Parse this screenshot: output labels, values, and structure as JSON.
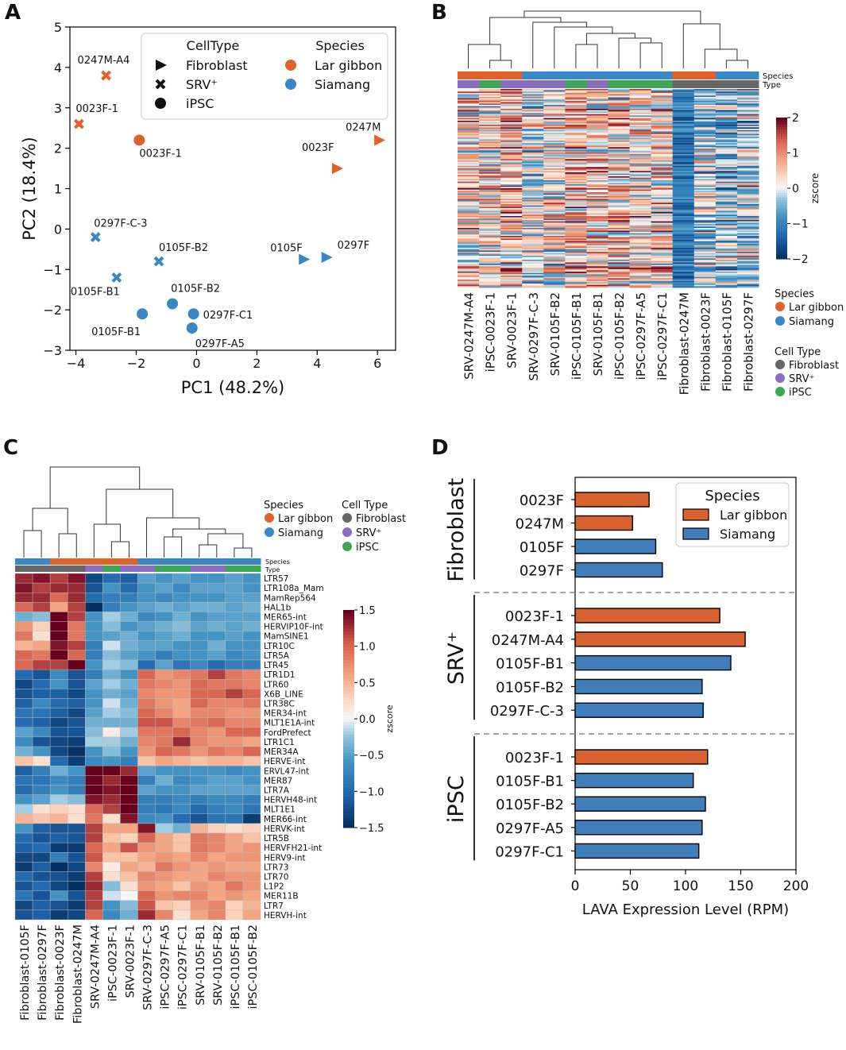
{
  "panel_labels": {
    "a": "A",
    "b": "B",
    "c": "C",
    "d": "D"
  },
  "colors": {
    "lar_gibbon": "#e0612a",
    "siamang": "#3a87c6",
    "fibroblast": "#666666",
    "srv": "#8a6cc0",
    "ipsc": "#3ca655",
    "bar_orange": "#d8622f",
    "bar_blue": "#3f7eb9"
  },
  "chart_data": [
    {
      "id": "A",
      "type": "scatter",
      "xlabel": "PC1 (48.2%)",
      "ylabel": "PC2 (18.4%)",
      "xlim": [
        -4.2,
        6.6
      ],
      "ylim": [
        -3,
        5
      ],
      "xticks": [
        "−4",
        "−2",
        "0",
        "2",
        "4",
        "6"
      ],
      "xtick_values": [
        -4,
        -2,
        0,
        2,
        4,
        6
      ],
      "yticks": [
        "−3",
        "−2",
        "−1",
        "0",
        "1",
        "2",
        "3",
        "4",
        "5"
      ],
      "ytick_values": [
        -3,
        -2,
        -1,
        0,
        1,
        2,
        3,
        4,
        5
      ],
      "legend": {
        "celltype_title": "CellType",
        "species_title": "Species",
        "celltype_items": [
          "Fibroblast",
          "SRV⁺",
          "iPSC"
        ],
        "species_items": [
          "Lar gibbon",
          "Siamang"
        ]
      },
      "points": [
        {
          "label": "0247M-A4",
          "x": -3.0,
          "y": 3.8,
          "cell": "srv",
          "species": "lar"
        },
        {
          "label": "0023F-1",
          "x": -3.9,
          "y": 2.6,
          "cell": "srv",
          "species": "lar"
        },
        {
          "label": "0023F-1",
          "x": -1.9,
          "y": 2.2,
          "cell": "ipsc",
          "species": "lar"
        },
        {
          "label": "0247M",
          "x": 6.05,
          "y": 2.2,
          "cell": "fibroblast",
          "species": "lar"
        },
        {
          "label": "0023F",
          "x": 4.65,
          "y": 1.5,
          "cell": "fibroblast",
          "species": "lar"
        },
        {
          "label": "0297F-C-3",
          "x": -3.35,
          "y": -0.2,
          "cell": "srv",
          "species": "siamang"
        },
        {
          "label": "0105F-B2",
          "x": -1.25,
          "y": -0.8,
          "cell": "srv",
          "species": "siamang"
        },
        {
          "label": "0105F-B1",
          "x": -2.65,
          "y": -1.2,
          "cell": "srv",
          "species": "siamang"
        },
        {
          "label": "0105F",
          "x": 3.55,
          "y": -0.75,
          "cell": "fibroblast",
          "species": "siamang"
        },
        {
          "label": "0297F",
          "x": 4.3,
          "y": -0.7,
          "cell": "fibroblast",
          "species": "siamang"
        },
        {
          "label": "0105F-B2",
          "x": -0.8,
          "y": -1.85,
          "cell": "ipsc",
          "species": "siamang"
        },
        {
          "label": "0105F-B1",
          "x": -1.8,
          "y": -2.1,
          "cell": "ipsc",
          "species": "siamang"
        },
        {
          "label": "0297F-C1",
          "x": -0.1,
          "y": -2.1,
          "cell": "ipsc",
          "species": "siamang"
        },
        {
          "label": "0297F-A5",
          "x": -0.15,
          "y": -2.45,
          "cell": "ipsc",
          "species": "siamang"
        }
      ]
    },
    {
      "id": "B",
      "type": "heatmap",
      "columns": [
        "SRV-0247M-A4",
        "iPSC-0023F-1",
        "SRV-0023F-1",
        "SRV-0297F-C-3",
        "SRV-0105F-B2",
        "iPSC-0105F-B1",
        "SRV-0105F-B1",
        "iPSC-0105F-B2",
        "iPSC-0297F-A5",
        "iPSC-0297F-C1",
        "Fibroblast-0247M",
        "Fibroblast-0023F",
        "Fibroblast-0105F",
        "Fibroblast-0297F"
      ],
      "species_row": [
        "lar",
        "lar",
        "lar",
        "siamang",
        "siamang",
        "siamang",
        "siamang",
        "siamang",
        "siamang",
        "siamang",
        "lar",
        "lar",
        "siamang",
        "siamang"
      ],
      "type_row": [
        "srv",
        "ipsc",
        "srv",
        "srv",
        "srv",
        "ipsc",
        "srv",
        "ipsc",
        "ipsc",
        "ipsc",
        "fibroblast",
        "fibroblast",
        "fibroblast",
        "fibroblast"
      ],
      "annotation_labels": [
        "Species",
        "Type"
      ],
      "colorbar": {
        "label": "zscore",
        "ticks": [
          "2",
          "1",
          "0",
          "−1",
          "−2"
        ],
        "tick_values": [
          2,
          1,
          0,
          -1,
          -2
        ],
        "range": [
          -2,
          2
        ]
      },
      "legend": {
        "species_title": "Species",
        "species_items": [
          "Lar gibbon",
          "Siamang"
        ],
        "celltype_title": "Cell Type",
        "celltype_items": [
          "Fibroblast",
          "SRV⁺",
          "iPSC"
        ]
      }
    },
    {
      "id": "C",
      "type": "heatmap",
      "columns": [
        "Fibroblast-0105F",
        "Fibroblast-0297F",
        "Fibroblast-0023F",
        "Fibroblast-0247M",
        "SRV-0247M-A4",
        "iPSC-0023F-1",
        "SRV-0023F-1",
        "SRV-0297F-C-3",
        "iPSC-0297F-A5",
        "iPSC-0297F-C1",
        "SRV-0105F-B1",
        "SRV-0105F-B2",
        "iPSC-0105F-B1",
        "iPSC-0105F-B2"
      ],
      "species_row": [
        "siamang",
        "siamang",
        "lar",
        "lar",
        "lar",
        "lar",
        "lar",
        "siamang",
        "siamang",
        "siamang",
        "siamang",
        "siamang",
        "siamang",
        "siamang"
      ],
      "type_row": [
        "fibroblast",
        "fibroblast",
        "fibroblast",
        "fibroblast",
        "srv",
        "ipsc",
        "srv",
        "srv",
        "ipsc",
        "ipsc",
        "srv",
        "srv",
        "ipsc",
        "ipsc"
      ],
      "annotation_labels": [
        "Species",
        "Type"
      ],
      "rows": [
        "LTR57",
        "LTR108a_Mam",
        "MamRep564",
        "HAL1b",
        "MER65-int",
        "HERVIP10F-int",
        "MamSINE1",
        "LTR10C",
        "LTR5A",
        "LTR45",
        "LTR1D1",
        "LTR60",
        "X6B_LINE",
        "LTR38C",
        "MER34-int",
        "MLT1E1A-int",
        "FordPrefect",
        "LTR1C1",
        "MER34A",
        "HERVE-int",
        "ERVL47-int",
        "MER87",
        "LTR7A",
        "HERVH48-int",
        "MLT1E1",
        "MER66-int",
        "HERVK-int",
        "LTR5B",
        "HERVFH21-int",
        "HERV9-int",
        "LTR73",
        "LTR70",
        "L1P2",
        "MER11B",
        "LTR7",
        "HERVH-int"
      ],
      "values": [
        [
          1.3,
          1.4,
          1.2,
          1.4,
          -1.3,
          -1.0,
          -1.1,
          -0.5,
          -0.6,
          -0.5,
          -0.6,
          -0.6,
          -0.5,
          -0.6
        ],
        [
          1.4,
          1.2,
          1.3,
          1.3,
          -1.2,
          -0.6,
          -1.0,
          -0.6,
          -0.5,
          -0.7,
          -0.5,
          -0.5,
          -0.5,
          -0.6
        ],
        [
          1.3,
          1.3,
          1.0,
          1.3,
          -1.0,
          -0.8,
          -0.8,
          -0.6,
          -0.7,
          -0.6,
          -0.6,
          -0.6,
          -0.5,
          -0.5
        ],
        [
          1.0,
          1.2,
          0.6,
          1.2,
          -1.5,
          -0.8,
          -0.6,
          -0.5,
          -0.4,
          -0.5,
          -0.4,
          -0.4,
          -0.5,
          -0.4
        ],
        [
          -0.4,
          -0.3,
          1.5,
          1.2,
          -0.6,
          -0.2,
          -0.4,
          -0.7,
          -0.6,
          -0.4,
          -0.6,
          -0.5,
          -0.5,
          -0.5
        ],
        [
          0.7,
          0.3,
          1.5,
          0.9,
          -0.6,
          -0.3,
          -0.6,
          -0.5,
          -0.4,
          -0.3,
          -0.5,
          -0.4,
          -0.5,
          -0.4
        ],
        [
          0.9,
          0.2,
          1.5,
          0.9,
          -0.6,
          -0.5,
          -0.4,
          -0.6,
          -0.5,
          -0.4,
          -0.6,
          -0.6,
          -0.5,
          -0.6
        ],
        [
          0.5,
          0.6,
          1.4,
          1.2,
          -0.8,
          -0.1,
          -0.4,
          -0.5,
          -0.5,
          -0.6,
          -0.6,
          -0.4,
          -0.6,
          -0.6
        ],
        [
          1.0,
          0.9,
          1.5,
          1.0,
          -0.8,
          -0.3,
          -0.5,
          -0.6,
          -0.8,
          -0.6,
          -0.6,
          -0.5,
          -0.7,
          -0.6
        ],
        [
          1.0,
          1.2,
          1.2,
          1.5,
          -0.6,
          -0.2,
          -0.3,
          -1.0,
          -0.5,
          -0.9,
          -0.7,
          -1.0,
          -0.8,
          -0.8
        ],
        [
          -1.0,
          -1.2,
          -0.7,
          -1.2,
          -0.8,
          -0.4,
          -0.6,
          1.0,
          0.7,
          0.8,
          0.9,
          1.2,
          0.9,
          0.8
        ],
        [
          -1.3,
          -1.0,
          -0.6,
          -1.2,
          -0.5,
          -0.2,
          -0.4,
          0.9,
          0.8,
          0.7,
          1.0,
          0.9,
          0.9,
          0.8
        ],
        [
          -1.2,
          -1.1,
          -1.1,
          -1.3,
          -0.6,
          -0.4,
          -0.5,
          0.8,
          0.7,
          0.7,
          1.0,
          1.0,
          1.2,
          1.0
        ],
        [
          -1.1,
          -0.7,
          -1.0,
          -1.1,
          -0.6,
          -0.1,
          -0.4,
          0.9,
          0.7,
          0.6,
          1.0,
          0.8,
          0.8,
          0.9
        ],
        [
          -0.9,
          -0.9,
          -1.1,
          -1.3,
          -0.5,
          -0.2,
          -0.3,
          1.0,
          0.8,
          0.6,
          0.8,
          0.8,
          0.7,
          0.7
        ],
        [
          -1.0,
          -1.1,
          -1.3,
          -1.2,
          -0.4,
          -0.4,
          -0.4,
          1.1,
          1.1,
          0.8,
          0.9,
          1.0,
          0.8,
          0.8
        ],
        [
          -0.5,
          -0.7,
          -1.2,
          -1.2,
          -0.3,
          0.1,
          -0.2,
          0.9,
          0.9,
          1.0,
          0.8,
          0.7,
          1.0,
          1.0
        ],
        [
          -0.7,
          -1.2,
          -1.3,
          -1.4,
          -0.2,
          -0.2,
          -0.4,
          0.8,
          0.9,
          1.3,
          0.8,
          0.7,
          0.7,
          0.6
        ],
        [
          -0.4,
          -0.6,
          -1.3,
          -1.5,
          -0.6,
          -0.3,
          -0.6,
          0.7,
          1.0,
          0.9,
          0.7,
          0.9,
          0.8,
          1.0
        ],
        [
          0.4,
          0.2,
          -1.0,
          -1.4,
          -0.7,
          -0.6,
          -0.8,
          0.4,
          0.6,
          0.5,
          0.4,
          0.5,
          0.5,
          0.4
        ],
        [
          -1.1,
          -0.8,
          -0.4,
          -0.6,
          1.5,
          1.5,
          1.3,
          -0.5,
          -0.6,
          -0.6,
          -0.6,
          -0.6,
          -0.7,
          -0.6
        ],
        [
          -0.9,
          -0.9,
          -0.7,
          -0.8,
          1.5,
          1.3,
          1.5,
          -0.8,
          -0.4,
          -0.7,
          -0.6,
          -0.5,
          -0.5,
          -0.6
        ],
        [
          -1.0,
          -0.8,
          -0.6,
          -0.8,
          1.5,
          1.4,
          1.5,
          -0.5,
          -0.6,
          -0.6,
          -0.5,
          -0.5,
          -0.5,
          -0.5
        ],
        [
          -0.6,
          -0.5,
          -0.2,
          -0.3,
          1.4,
          1.3,
          1.5,
          -0.8,
          -0.8,
          -0.7,
          -0.8,
          -0.7,
          -0.7,
          -0.8
        ],
        [
          -0.2,
          0.2,
          0.3,
          0.2,
          1.0,
          1.2,
          1.5,
          -0.8,
          -0.9,
          -0.7,
          -1.0,
          -0.8,
          -0.7,
          -0.9
        ],
        [
          0.5,
          0.4,
          0.5,
          0.2,
          0.9,
          0.2,
          1.4,
          -0.7,
          -0.6,
          -1.0,
          -1.2,
          -0.9,
          -0.9,
          -1.4
        ],
        [
          -0.6,
          -1.1,
          -1.2,
          -1.2,
          1.2,
          0.6,
          0.6,
          1.4,
          -0.2,
          -0.4,
          0.5,
          0.3,
          0.2,
          0.3
        ],
        [
          -1.0,
          -1.2,
          -1.1,
          -1.2,
          1.2,
          0.4,
          0.3,
          1.0,
          0.6,
          0.4,
          0.9,
          0.8,
          0.6,
          0.4
        ],
        [
          -1.1,
          -1.0,
          -1.4,
          -1.4,
          1.0,
          0.6,
          1.1,
          0.7,
          0.6,
          0.4,
          0.9,
          0.8,
          0.6,
          0.7
        ],
        [
          -1.3,
          -1.3,
          -0.8,
          -1.2,
          1.1,
          0.4,
          0.4,
          0.6,
          0.7,
          0.6,
          0.8,
          0.6,
          0.7,
          0.7
        ],
        [
          -1.4,
          -1.1,
          -1.5,
          -1.3,
          0.8,
          0.1,
          0.6,
          0.5,
          0.9,
          0.7,
          0.6,
          0.7,
          0.6,
          0.6
        ],
        [
          -1.0,
          -1.2,
          -1.2,
          -1.4,
          1.2,
          0.2,
          0.4,
          0.8,
          0.7,
          0.6,
          0.6,
          0.8,
          0.7,
          0.7
        ],
        [
          -1.2,
          -1.0,
          -1.3,
          -1.5,
          1.3,
          -0.3,
          0.2,
          0.7,
          0.6,
          0.4,
          0.7,
          0.6,
          0.9,
          0.7
        ],
        [
          -0.9,
          -1.2,
          -0.6,
          -1.2,
          1.2,
          -0.1,
          0.0,
          1.0,
          0.7,
          0.8,
          0.8,
          0.6,
          0.7,
          0.6
        ],
        [
          -1.3,
          -1.1,
          -1.2,
          -1.4,
          1.2,
          -0.6,
          -0.3,
          1.1,
          0.4,
          0.3,
          0.7,
          0.8,
          0.3,
          0.5
        ],
        [
          -1.2,
          -1.1,
          -1.4,
          -1.3,
          1.0,
          -0.7,
          -0.4,
          1.3,
          0.8,
          0.2,
          0.6,
          0.8,
          0.3,
          0.6
        ]
      ],
      "colorbar": {
        "label": "zscore",
        "ticks": [
          "1.5",
          "1.0",
          "0.5",
          "0.0",
          "−0.5",
          "−1.0",
          "−1.5"
        ],
        "tick_values": [
          1.5,
          1.0,
          0.5,
          0.0,
          -0.5,
          -1.0,
          -1.5
        ],
        "range": [
          -1.5,
          1.5
        ]
      },
      "legend": {
        "species_title": "Species",
        "species_items": [
          "Lar gibbon",
          "Siamang"
        ],
        "celltype_title": "Cell Type",
        "celltype_items": [
          "Fibroblast",
          "SRV⁺",
          "iPSC"
        ]
      }
    },
    {
      "id": "D",
      "type": "bar",
      "orientation": "horizontal",
      "xlabel": "LAVA Expression Level (RPM)",
      "xlim": [
        0,
        200
      ],
      "xticks": [
        "0",
        "50",
        "100",
        "150",
        "200"
      ],
      "xtick_values": [
        0,
        50,
        100,
        150,
        200
      ],
      "legend": {
        "title": "Species",
        "items": [
          "Lar gibbon",
          "Siamang"
        ]
      },
      "groups": [
        {
          "name": "Fibroblast",
          "bars": [
            {
              "label": "0023F",
              "value": 67,
              "species": "lar"
            },
            {
              "label": "0247M",
              "value": 52,
              "species": "lar"
            },
            {
              "label": "0105F",
              "value": 73,
              "species": "siamang"
            },
            {
              "label": "0297F",
              "value": 79,
              "species": "siamang"
            }
          ]
        },
        {
          "name": "SRV⁺",
          "bars": [
            {
              "label": "0023F-1",
              "value": 131,
              "species": "lar"
            },
            {
              "label": "0247M-A4",
              "value": 154,
              "species": "lar"
            },
            {
              "label": "0105F-B1",
              "value": 141,
              "species": "siamang"
            },
            {
              "label": "0105F-B2",
              "value": 115,
              "species": "siamang"
            },
            {
              "label": "0297F-C-3",
              "value": 116,
              "species": "siamang"
            }
          ]
        },
        {
          "name": "iPSC",
          "bars": [
            {
              "label": "0023F-1",
              "value": 120,
              "species": "lar"
            },
            {
              "label": "0105F-B1",
              "value": 107,
              "species": "siamang"
            },
            {
              "label": "0105F-B2",
              "value": 118,
              "species": "siamang"
            },
            {
              "label": "0297F-A5",
              "value": 115,
              "species": "siamang"
            },
            {
              "label": "0297F-C1",
              "value": 112,
              "species": "siamang"
            }
          ]
        }
      ]
    }
  ]
}
